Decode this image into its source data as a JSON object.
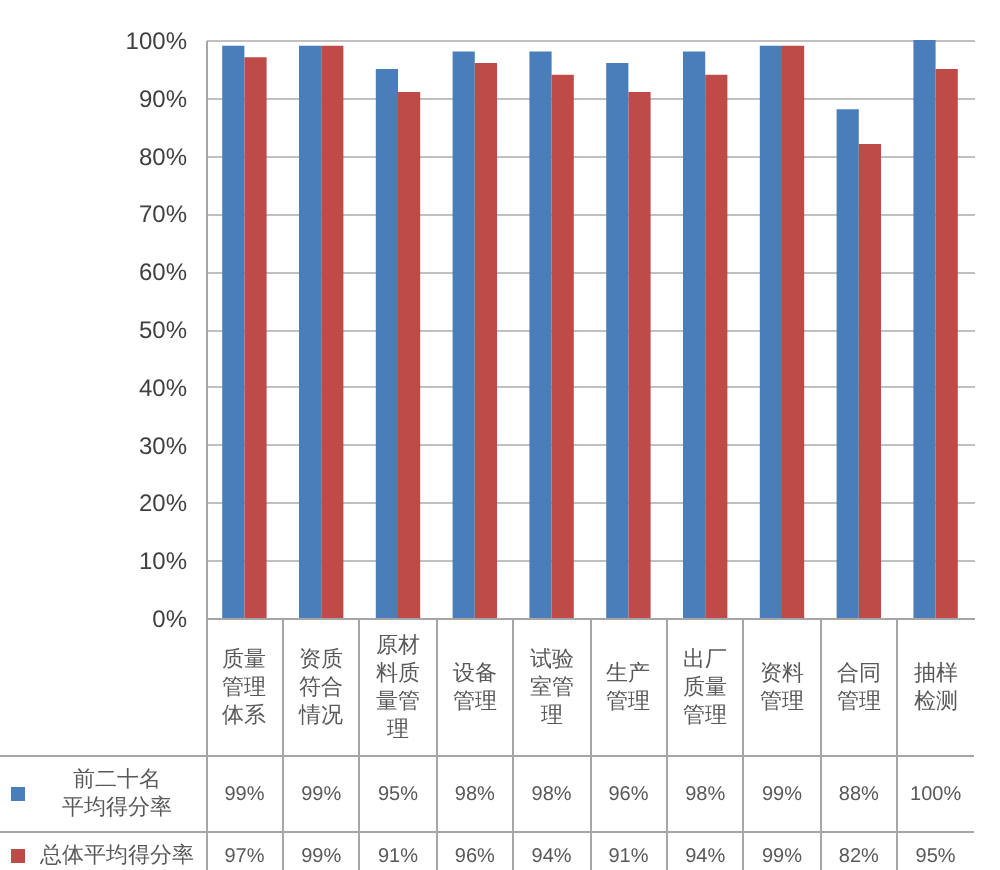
{
  "chart_data": {
    "type": "bar",
    "categories": [
      "质量管理体系",
      "资质符合情况",
      "原材料质量管理",
      "设备管理",
      "试验室管理",
      "生产管理",
      "出厂质量管理",
      "资料管理",
      "合同管理",
      "抽样检测"
    ],
    "series": [
      {
        "name": "前二十名平均得分率",
        "color": "#4a7ebb",
        "values": [
          99,
          99,
          95,
          98,
          98,
          96,
          98,
          99,
          88,
          100
        ],
        "value_labels": [
          "99%",
          "99%",
          "95%",
          "98%",
          "98%",
          "96%",
          "98%",
          "99%",
          "88%",
          "100%"
        ]
      },
      {
        "name": "总体平均得分率",
        "color": "#be4b48",
        "values": [
          97,
          99,
          91,
          96,
          94,
          91,
          94,
          99,
          82,
          95
        ],
        "value_labels": [
          "97%",
          "99%",
          "91%",
          "96%",
          "94%",
          "91%",
          "94%",
          "99%",
          "82%",
          "95%"
        ]
      }
    ],
    "ylim": [
      0,
      100
    ],
    "yticks": [
      {
        "value": 0,
        "label": "0%"
      },
      {
        "value": 10,
        "label": "10%"
      },
      {
        "value": 20,
        "label": "20%"
      },
      {
        "value": 30,
        "label": "30%"
      },
      {
        "value": 40,
        "label": "40%"
      },
      {
        "value": 50,
        "label": "50%"
      },
      {
        "value": 60,
        "label": "60%"
      },
      {
        "value": 70,
        "label": "70%"
      },
      {
        "value": 80,
        "label": "80%"
      },
      {
        "value": 90,
        "label": "90%"
      },
      {
        "value": 100,
        "label": "100%"
      }
    ],
    "grid": "y",
    "legend": "bottom left"
  }
}
